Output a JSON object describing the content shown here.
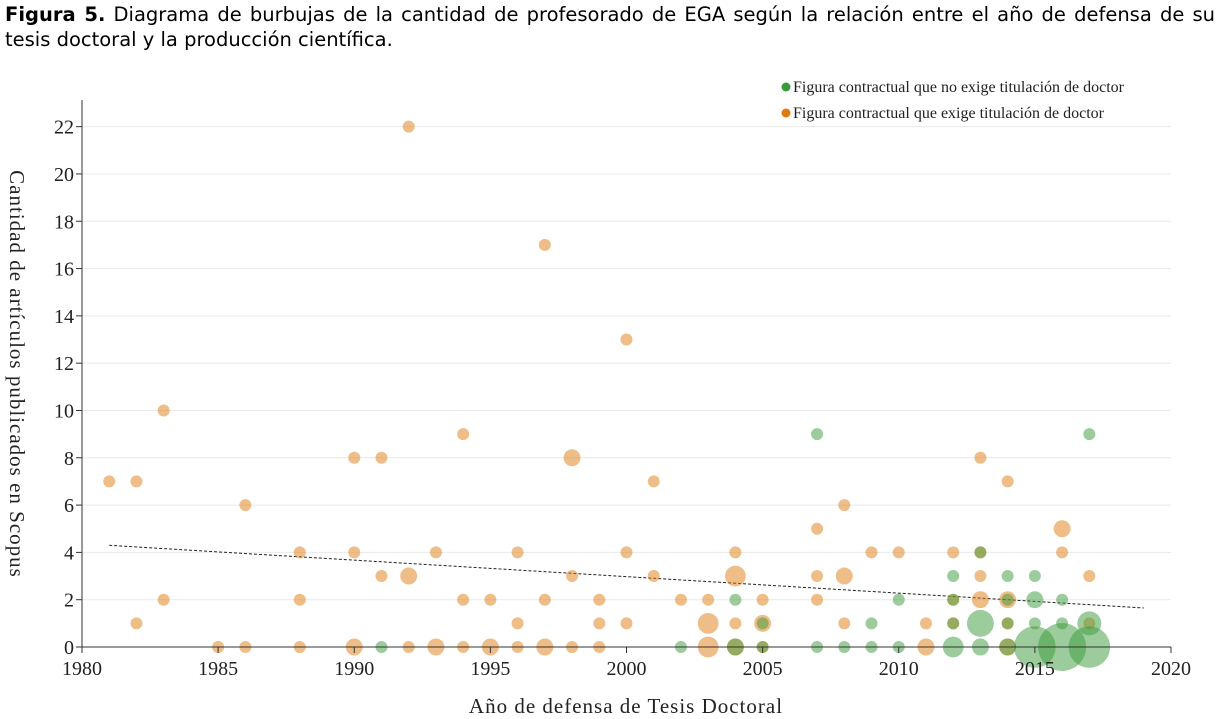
{
  "caption": {
    "label": "Figura 5.",
    "text": "Diagrama de burbujas de la cantidad de profesorado de EGA según la relación entre el año de defensa de su tesis doctoral y la producción científica."
  },
  "colors": {
    "green": "#3a9a3a",
    "orange": "#e07b10"
  },
  "chart_data": {
    "type": "scatter",
    "title": "",
    "xlabel": "Año de defensa de Tesis Doctoral",
    "ylabel": "Cantidad de artículos publicados en Scopus",
    "xlim": [
      1980,
      2020
    ],
    "ylim": [
      0,
      23
    ],
    "xticks": [
      1980,
      1985,
      1990,
      1995,
      2000,
      2005,
      2010,
      2015,
      2020
    ],
    "yticks": [
      0,
      2,
      4,
      6,
      8,
      10,
      12,
      14,
      16,
      18,
      20,
      22
    ],
    "grid": "horizontal",
    "legend_position": "top-right",
    "series": [
      {
        "name": "Figura contractual que no exige titulación de doctor",
        "color": "#3a9a3a",
        "points": [
          {
            "x": 1991,
            "y": 0,
            "s": 1
          },
          {
            "x": 2002,
            "y": 0,
            "s": 1
          },
          {
            "x": 2004,
            "y": 2,
            "s": 1
          },
          {
            "x": 2004,
            "y": 0,
            "s": 2
          },
          {
            "x": 2005,
            "y": 1,
            "s": 1
          },
          {
            "x": 2005,
            "y": 0,
            "s": 1
          },
          {
            "x": 2007,
            "y": 9,
            "s": 1
          },
          {
            "x": 2007,
            "y": 0,
            "s": 1
          },
          {
            "x": 2008,
            "y": 0,
            "s": 1
          },
          {
            "x": 2009,
            "y": 1,
            "s": 1
          },
          {
            "x": 2009,
            "y": 0,
            "s": 1
          },
          {
            "x": 2010,
            "y": 2,
            "s": 1
          },
          {
            "x": 2010,
            "y": 0,
            "s": 1
          },
          {
            "x": 2012,
            "y": 3,
            "s": 1
          },
          {
            "x": 2012,
            "y": 2,
            "s": 1
          },
          {
            "x": 2012,
            "y": 1,
            "s": 1
          },
          {
            "x": 2012,
            "y": 0,
            "s": 3
          },
          {
            "x": 2013,
            "y": 4,
            "s": 1
          },
          {
            "x": 2013,
            "y": 1,
            "s": 5
          },
          {
            "x": 2013,
            "y": 0,
            "s": 2
          },
          {
            "x": 2014,
            "y": 3,
            "s": 1
          },
          {
            "x": 2014,
            "y": 2,
            "s": 1
          },
          {
            "x": 2014,
            "y": 1,
            "s": 1
          },
          {
            "x": 2014,
            "y": 0,
            "s": 2
          },
          {
            "x": 2015,
            "y": 3,
            "s": 1
          },
          {
            "x": 2015,
            "y": 2,
            "s": 2
          },
          {
            "x": 2015,
            "y": 1,
            "s": 1
          },
          {
            "x": 2015,
            "y": 0,
            "s": 12
          },
          {
            "x": 2016,
            "y": 2,
            "s": 1
          },
          {
            "x": 2016,
            "y": 1,
            "s": 1
          },
          {
            "x": 2016,
            "y": 0,
            "s": 16
          },
          {
            "x": 2017,
            "y": 9,
            "s": 1
          },
          {
            "x": 2017,
            "y": 1,
            "s": 4
          },
          {
            "x": 2017,
            "y": 0,
            "s": 12
          }
        ]
      },
      {
        "name": "Figura contractual que exige titulación de doctor",
        "color": "#e07b10",
        "points": [
          {
            "x": 1981,
            "y": 7,
            "s": 1
          },
          {
            "x": 1982,
            "y": 7,
            "s": 1
          },
          {
            "x": 1982,
            "y": 1,
            "s": 1
          },
          {
            "x": 1983,
            "y": 10,
            "s": 1
          },
          {
            "x": 1983,
            "y": 2,
            "s": 1
          },
          {
            "x": 1985,
            "y": 0,
            "s": 1
          },
          {
            "x": 1986,
            "y": 6,
            "s": 1
          },
          {
            "x": 1986,
            "y": 0,
            "s": 1
          },
          {
            "x": 1988,
            "y": 4,
            "s": 1
          },
          {
            "x": 1988,
            "y": 2,
            "s": 1
          },
          {
            "x": 1988,
            "y": 0,
            "s": 1
          },
          {
            "x": 1990,
            "y": 8,
            "s": 1
          },
          {
            "x": 1990,
            "y": 4,
            "s": 1
          },
          {
            "x": 1990,
            "y": 0,
            "s": 2
          },
          {
            "x": 1991,
            "y": 8,
            "s": 1
          },
          {
            "x": 1991,
            "y": 3,
            "s": 1
          },
          {
            "x": 1992,
            "y": 22,
            "s": 1
          },
          {
            "x": 1992,
            "y": 3,
            "s": 2
          },
          {
            "x": 1992,
            "y": 0,
            "s": 1
          },
          {
            "x": 1993,
            "y": 4,
            "s": 1
          },
          {
            "x": 1993,
            "y": 0,
            "s": 2
          },
          {
            "x": 1994,
            "y": 9,
            "s": 1
          },
          {
            "x": 1994,
            "y": 2,
            "s": 1
          },
          {
            "x": 1994,
            "y": 0,
            "s": 1
          },
          {
            "x": 1995,
            "y": 2,
            "s": 1
          },
          {
            "x": 1995,
            "y": 0,
            "s": 2
          },
          {
            "x": 1996,
            "y": 4,
            "s": 1
          },
          {
            "x": 1996,
            "y": 1,
            "s": 1
          },
          {
            "x": 1996,
            "y": 0,
            "s": 1
          },
          {
            "x": 1997,
            "y": 17,
            "s": 1
          },
          {
            "x": 1997,
            "y": 2,
            "s": 1
          },
          {
            "x": 1997,
            "y": 0,
            "s": 2
          },
          {
            "x": 1998,
            "y": 8,
            "s": 2
          },
          {
            "x": 1998,
            "y": 3,
            "s": 1
          },
          {
            "x": 1998,
            "y": 0,
            "s": 1
          },
          {
            "x": 1999,
            "y": 2,
            "s": 1
          },
          {
            "x": 1999,
            "y": 1,
            "s": 1
          },
          {
            "x": 1999,
            "y": 0,
            "s": 1
          },
          {
            "x": 2000,
            "y": 13,
            "s": 1
          },
          {
            "x": 2000,
            "y": 4,
            "s": 1
          },
          {
            "x": 2000,
            "y": 1,
            "s": 1
          },
          {
            "x": 2001,
            "y": 7,
            "s": 1
          },
          {
            "x": 2001,
            "y": 3,
            "s": 1
          },
          {
            "x": 2002,
            "y": 2,
            "s": 1
          },
          {
            "x": 2003,
            "y": 2,
            "s": 1
          },
          {
            "x": 2003,
            "y": 1,
            "s": 3
          },
          {
            "x": 2003,
            "y": 0,
            "s": 3
          },
          {
            "x": 2004,
            "y": 4,
            "s": 1
          },
          {
            "x": 2004,
            "y": 3,
            "s": 3
          },
          {
            "x": 2004,
            "y": 1,
            "s": 1
          },
          {
            "x": 2004,
            "y": 0,
            "s": 2
          },
          {
            "x": 2005,
            "y": 2,
            "s": 1
          },
          {
            "x": 2005,
            "y": 1,
            "s": 2
          },
          {
            "x": 2005,
            "y": 0,
            "s": 1
          },
          {
            "x": 2007,
            "y": 5,
            "s": 1
          },
          {
            "x": 2007,
            "y": 3,
            "s": 1
          },
          {
            "x": 2007,
            "y": 2,
            "s": 1
          },
          {
            "x": 2008,
            "y": 6,
            "s": 1
          },
          {
            "x": 2008,
            "y": 3,
            "s": 2
          },
          {
            "x": 2008,
            "y": 1,
            "s": 1
          },
          {
            "x": 2009,
            "y": 4,
            "s": 1
          },
          {
            "x": 2010,
            "y": 4,
            "s": 1
          },
          {
            "x": 2011,
            "y": 1,
            "s": 1
          },
          {
            "x": 2011,
            "y": 0,
            "s": 2
          },
          {
            "x": 2012,
            "y": 4,
            "s": 1
          },
          {
            "x": 2012,
            "y": 2,
            "s": 1
          },
          {
            "x": 2012,
            "y": 1,
            "s": 1
          },
          {
            "x": 2013,
            "y": 8,
            "s": 1
          },
          {
            "x": 2013,
            "y": 4,
            "s": 1
          },
          {
            "x": 2013,
            "y": 3,
            "s": 1
          },
          {
            "x": 2013,
            "y": 2,
            "s": 2
          },
          {
            "x": 2014,
            "y": 7,
            "s": 1
          },
          {
            "x": 2014,
            "y": 2,
            "s": 2
          },
          {
            "x": 2014,
            "y": 1,
            "s": 1
          },
          {
            "x": 2014,
            "y": 0,
            "s": 2
          },
          {
            "x": 2016,
            "y": 5,
            "s": 2
          },
          {
            "x": 2016,
            "y": 4,
            "s": 1
          },
          {
            "x": 2017,
            "y": 3,
            "s": 1
          },
          {
            "x": 2017,
            "y": 1,
            "s": 1
          }
        ]
      }
    ],
    "trendline": {
      "style": "dashed",
      "x": [
        1981,
        2019
      ],
      "y": [
        4.3,
        1.65
      ]
    }
  }
}
